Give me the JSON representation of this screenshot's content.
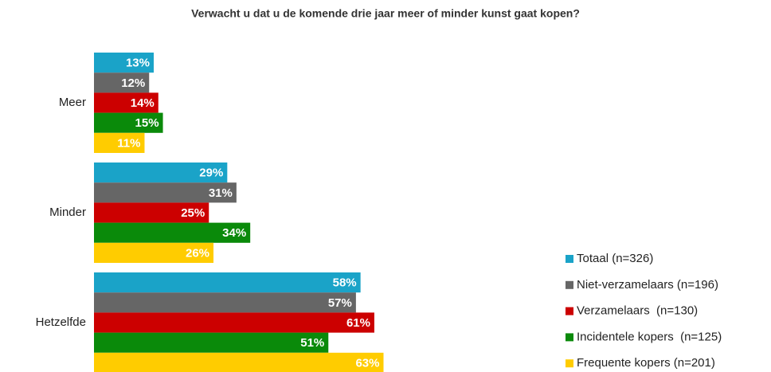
{
  "chart_data": {
    "type": "bar",
    "orientation": "horizontal",
    "title": "Verwacht u dat u de komende drie jaar meer of minder kunst gaat kopen?",
    "categories": [
      "Meer",
      "Minder",
      "Hetzelfde"
    ],
    "series": [
      {
        "name": "Totaal (n=326)",
        "color": "#1aa3c8",
        "values": [
          13,
          29,
          58
        ],
        "value_labels": [
          "13%",
          "29%",
          "58%"
        ]
      },
      {
        "name": "Niet-verzamelaars (n=196)",
        "color": "#666666",
        "values": [
          12,
          31,
          57
        ],
        "value_labels": [
          "12%",
          "31%",
          "57%"
        ]
      },
      {
        "name": "Verzamelaars  (n=130)",
        "color": "#cc0000",
        "values": [
          14,
          25,
          61
        ],
        "value_labels": [
          "14%",
          "25%",
          "61%"
        ]
      },
      {
        "name": "Incidentele kopers  (n=125)",
        "color": "#0a8a0a",
        "values": [
          15,
          34,
          51
        ],
        "value_labels": [
          "15%",
          "34%",
          "51%"
        ]
      },
      {
        "name": "Frequente kopers (n=201)",
        "color": "#ffcc00",
        "values": [
          11,
          26,
          63
        ],
        "value_labels": [
          "11%",
          "26%",
          "63%"
        ]
      }
    ],
    "legend": "right"
  }
}
